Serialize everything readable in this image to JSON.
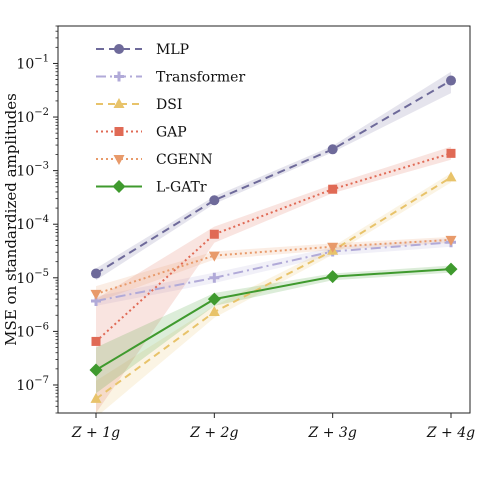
{
  "chart_data": {
    "type": "line",
    "title": "",
    "xlabel": "",
    "ylabel": "MSE on standardized amplitudes",
    "categories": [
      "Z + 1g",
      "Z + 2g",
      "Z + 3g",
      "Z + 4g"
    ],
    "y_scale": "log",
    "ylim": [
      3e-08,
      0.5
    ],
    "yticks": [
      {
        "value": 1e-07,
        "base": "10",
        "exp": "−7"
      },
      {
        "value": 1e-06,
        "base": "10",
        "exp": "−6"
      },
      {
        "value": 1e-05,
        "base": "10",
        "exp": "−5"
      },
      {
        "value": 0.0001,
        "base": "10",
        "exp": "−4"
      },
      {
        "value": 0.001,
        "base": "10",
        "exp": "−3"
      },
      {
        "value": 0.01,
        "base": "10",
        "exp": "−2"
      },
      {
        "value": 0.1,
        "base": "10",
        "exp": "−1"
      }
    ],
    "grid": false,
    "legend_position": "top-left",
    "series": [
      {
        "name": "MLP",
        "color": "#6e6a9a",
        "marker": "circle",
        "dash": "8,5",
        "values": [
          1.2e-05,
          0.00028,
          0.0025,
          0.048
        ],
        "band_low": [
          9e-06,
          0.00024,
          0.0022,
          0.028
        ],
        "band_high": [
          1.5e-05,
          0.00033,
          0.0029,
          0.07
        ]
      },
      {
        "name": "Transformer",
        "color": "#b1aad8",
        "marker": "plus",
        "dash": "10,4,2,4",
        "values": [
          3.7e-06,
          1e-05,
          3.1e-05,
          4.6e-05
        ],
        "band_low": [
          3e-06,
          8e-06,
          2.6e-05,
          3.8e-05
        ],
        "band_high": [
          4.5e-06,
          1.25e-05,
          3.7e-05,
          5.5e-05
        ]
      },
      {
        "name": "DSI",
        "color": "#e8c36a",
        "marker": "triangle-up",
        "dash": "7,5",
        "values": [
          5.5e-08,
          2.3e-06,
          3.2e-05,
          0.00075
        ],
        "band_low": [
          2.5e-08,
          1.8e-06,
          2.7e-05,
          0.0006
        ],
        "band_high": [
          1.2e-07,
          3e-06,
          3.8e-05,
          0.0009
        ]
      },
      {
        "name": "GAP",
        "color": "#e06a55",
        "marker": "square",
        "dash": "2,3",
        "values": [
          6.5e-07,
          6.5e-05,
          0.00045,
          0.0021
        ],
        "band_low": [
          3e-08,
          4.5e-05,
          0.00038,
          0.0016
        ],
        "band_high": [
          4e-06,
          9e-05,
          0.00055,
          0.0028
        ]
      },
      {
        "name": "CGENN",
        "color": "#e89a6a",
        "marker": "triangle-down",
        "dash": "2,3",
        "values": [
          5e-06,
          2.6e-05,
          3.8e-05,
          5.1e-05
        ],
        "band_low": [
          3.5e-06,
          2.2e-05,
          3.3e-05,
          4.5e-05
        ],
        "band_high": [
          7e-06,
          3.1e-05,
          4.4e-05,
          5.8e-05
        ]
      },
      {
        "name": "L-GATr",
        "color": "#3f9a2e",
        "marker": "diamond",
        "dash": "",
        "values": [
          1.9e-07,
          4e-06,
          1.05e-05,
          1.45e-05
        ],
        "band_low": [
          7e-08,
          3e-06,
          9e-06,
          1.25e-05
        ],
        "band_high": [
          5e-07,
          5.2e-06,
          1.2e-05,
          1.7e-05
        ]
      }
    ]
  }
}
